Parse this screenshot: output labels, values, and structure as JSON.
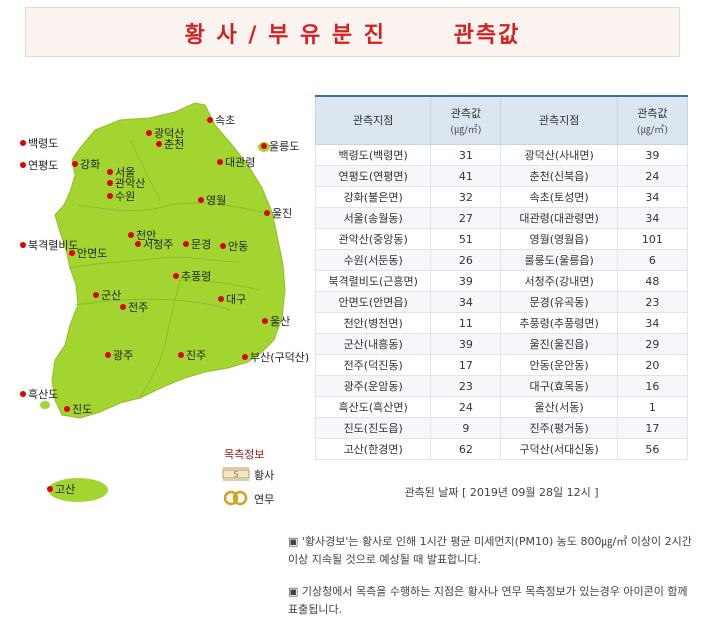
{
  "page": {
    "title": "황 사 / 부 유 분 진       관측값"
  },
  "map": {
    "land_color": "#a3d531",
    "dot_color": "#e10000",
    "stations": [
      {
        "label": "백령도"
      },
      {
        "label": "연평도"
      },
      {
        "label": "강화"
      },
      {
        "label": "서울"
      },
      {
        "label": "관악산"
      },
      {
        "label": "수원"
      },
      {
        "label": "광덕산"
      },
      {
        "label": "춘천"
      },
      {
        "label": "속초"
      },
      {
        "label": "울릉도"
      },
      {
        "label": "대관령"
      },
      {
        "label": "영월"
      },
      {
        "label": "울진"
      },
      {
        "label": "북격렬비도"
      },
      {
        "label": "안면도"
      },
      {
        "label": "천안"
      },
      {
        "label": "서청주"
      },
      {
        "label": "문경"
      },
      {
        "label": "안동"
      },
      {
        "label": "추풍령"
      },
      {
        "label": "군산"
      },
      {
        "label": "전주"
      },
      {
        "label": "대구"
      },
      {
        "label": "울산"
      },
      {
        "label": "광주"
      },
      {
        "label": "진주"
      },
      {
        "label": "부산(구덕산)"
      },
      {
        "label": "흑산도"
      },
      {
        "label": "진도"
      },
      {
        "label": "고산"
      }
    ]
  },
  "legend": {
    "title": "목측정보",
    "items": [
      {
        "label": "황사",
        "icon": "yellow-dust-icon"
      },
      {
        "label": "연무",
        "icon": "haze-icon"
      }
    ]
  },
  "table": {
    "headers": {
      "station": "관측지점",
      "value": "관측값",
      "unit": "(㎍/㎥)"
    },
    "rows": [
      [
        {
          "s": "백령도(백령면)",
          "v": "31"
        },
        {
          "s": "광덕산(사내면)",
          "v": "39"
        }
      ],
      [
        {
          "s": "연평도(연평면)",
          "v": "41"
        },
        {
          "s": "춘천(신북읍)",
          "v": "24"
        }
      ],
      [
        {
          "s": "강화(불은면)",
          "v": "32"
        },
        {
          "s": "속초(토성면)",
          "v": "34"
        }
      ],
      [
        {
          "s": "서울(송월동)",
          "v": "27"
        },
        {
          "s": "대관령(대관령면)",
          "v": "34"
        }
      ],
      [
        {
          "s": "관악산(중앙동)",
          "v": "51"
        },
        {
          "s": "영월(영월읍)",
          "v": "101"
        }
      ],
      [
        {
          "s": "수원(서둔동)",
          "v": "26"
        },
        {
          "s": "룰룽도(울릉읍)",
          "v": "6"
        }
      ],
      [
        {
          "s": "북격렬비도(근흥면)",
          "v": "39"
        },
        {
          "s": "서청주(강내면)",
          "v": "48"
        }
      ],
      [
        {
          "s": "안면도(안면읍)",
          "v": "34"
        },
        {
          "s": "문경(유곡동)",
          "v": "23"
        }
      ],
      [
        {
          "s": "천안(병천면)",
          "v": "11"
        },
        {
          "s": "추풍령(추풍령면)",
          "v": "34"
        }
      ],
      [
        {
          "s": "군산(내흥동)",
          "v": "39"
        },
        {
          "s": "울진(울진읍)",
          "v": "29"
        }
      ],
      [
        {
          "s": "전주(덕진동)",
          "v": "17"
        },
        {
          "s": "안동(운안동)",
          "v": "20"
        }
      ],
      [
        {
          "s": "광주(운암동)",
          "v": "23"
        },
        {
          "s": "대구(효목동)",
          "v": "16"
        }
      ],
      [
        {
          "s": "흑산도(흑산면)",
          "v": "24"
        },
        {
          "s": "울산(서동)",
          "v": "1"
        }
      ],
      [
        {
          "s": "진도(진도읍)",
          "v": "9"
        },
        {
          "s": "진주(평거동)",
          "v": "17"
        }
      ],
      [
        {
          "s": "고산(한경면)",
          "v": "62"
        },
        {
          "s": "구덕산(서대신동)",
          "v": "56"
        }
      ]
    ]
  },
  "obs_time": "관측된 날짜 [ 2019년 09월 28일 12시 ]",
  "notes": [
    "▣ '황사경보'는 황사로 인해 1시간 평균 미세먼지(PM10) 농도 800㎍/㎥ 이상이 2시간 이상 지속될 것으로 예상될 때 발표합니다.",
    "▣ 기상청에서 목측을 수행하는 지점은 황사나 연무 목측정보가 있는경우 아이콘이 함께 표출됩니다."
  ]
}
